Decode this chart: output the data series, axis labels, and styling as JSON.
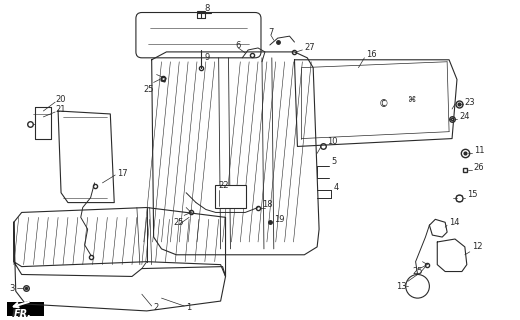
{
  "bg_color": "#ffffff",
  "line_color": "#2a2a2a",
  "figsize": [
    5.2,
    3.2
  ],
  "dpi": 100,
  "xlim": [
    0,
    520
  ],
  "ylim": [
    0,
    320
  ]
}
